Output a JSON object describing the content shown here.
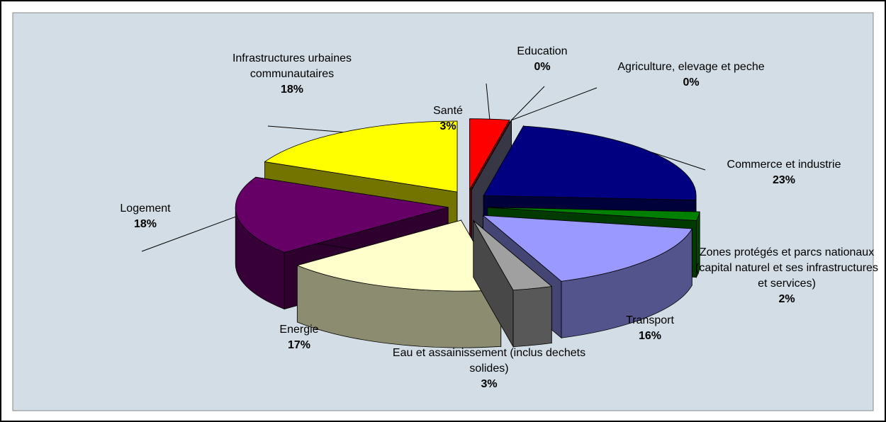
{
  "chart_data": {
    "type": "pie",
    "categories": [
      "Santé",
      "Education",
      "Agriculture, elevage et peche",
      "Commerce et industrie",
      "Zones protégés et parcs nationaux (capital naturel et ses infrastructures et services)",
      "Transport",
      "Eau et assainissement (inclus dechets solides)",
      "Energie",
      "Logement",
      "Infrastructures urbaines communautaires"
    ],
    "values": [
      3,
      0,
      0,
      23,
      2,
      16,
      3,
      17,
      18,
      18
    ],
    "value_labels": [
      "3%",
      "0%",
      "0%",
      "23%",
      "2%",
      "16%",
      "3%",
      "17%",
      "18%",
      "18%"
    ],
    "colors": [
      "#ff0000",
      "#99cc99",
      "#7a7a99",
      "#000080",
      "#008000",
      "#9999ff",
      "#a0a0a0",
      "#ffffcc",
      "#660066",
      "#ffff00"
    ]
  }
}
